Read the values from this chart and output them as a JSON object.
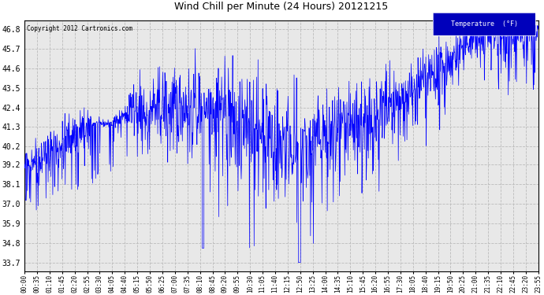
{
  "title": "Wind Chill per Minute (24 Hours) 20121215",
  "copyright": "Copyright 2012 Cartronics.com",
  "legend_label": "Temperature  (°F)",
  "legend_bg": "#0000bb",
  "legend_text_color": "#ffffff",
  "line_color": "#0000ff",
  "bg_color": "#ffffff",
  "plot_bg": "#e8e8e8",
  "grid_color": "#bbbbbb",
  "yticks": [
    33.7,
    34.8,
    35.9,
    37.0,
    38.1,
    39.2,
    40.2,
    41.3,
    42.4,
    43.5,
    44.6,
    45.7,
    46.8
  ],
  "ymin": 33.2,
  "ymax": 47.3,
  "xtick_labels": [
    "00:00",
    "00:35",
    "01:10",
    "01:45",
    "02:20",
    "02:55",
    "03:30",
    "04:05",
    "04:40",
    "05:15",
    "05:50",
    "06:25",
    "07:00",
    "07:35",
    "08:10",
    "08:45",
    "09:20",
    "09:55",
    "10:30",
    "11:05",
    "11:40",
    "12:15",
    "12:50",
    "13:25",
    "14:00",
    "14:35",
    "15:10",
    "15:45",
    "16:20",
    "16:55",
    "17:30",
    "18:05",
    "18:40",
    "19:15",
    "19:50",
    "20:25",
    "21:00",
    "21:35",
    "22:10",
    "22:45",
    "23:20",
    "23:55"
  ],
  "seed": 42,
  "figwidth": 6.9,
  "figheight": 3.75,
  "dpi": 100
}
